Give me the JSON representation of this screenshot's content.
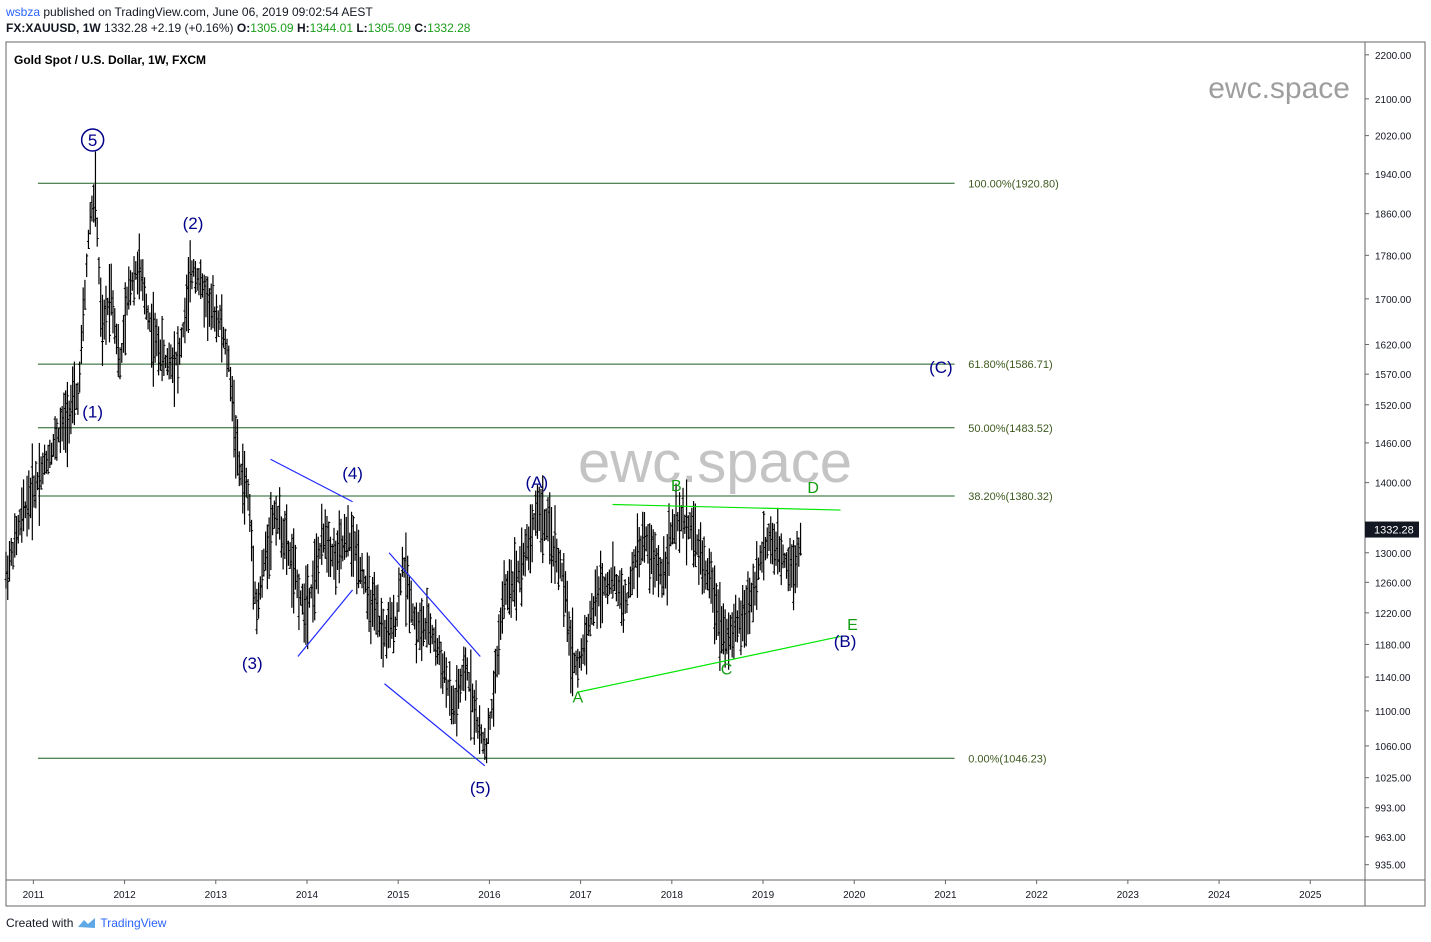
{
  "header": {
    "author": "wsbza",
    "published": "published on TradingView.com, June 06, 2019 09:02:54 AEST",
    "symbol": "FX:XAUUSD",
    "interval": "1W",
    "last": "1332.28",
    "change": "+2.19 (+0.16%)",
    "o_label": "O:",
    "o": "1305.09",
    "h_label": "H:",
    "h": "1344.01",
    "l_label": "L:",
    "l": "1305.09",
    "c_label": "C:",
    "c": "1332.28"
  },
  "footer": {
    "created_with": "Created with",
    "brand": "TradingView"
  },
  "colors": {
    "candles": "#000000",
    "fib": "#1b5e20",
    "wave_blue": "#00008b",
    "trend_blue": "#1f28ff",
    "triangle_green": "#00e600",
    "label_green": "#119e11",
    "price_badge": "#131722",
    "watermark": "#9e9e9e"
  },
  "chart_data": {
    "type": "candlestick",
    "title": "Gold Spot / U.S. Dollar, 1W, FXCM",
    "watermark_small": "ewc.space",
    "watermark_large": "ewc.space",
    "y_scale": "log",
    "ylim": [
      920,
      2230
    ],
    "xlim": [
      2010.7,
      2025.6
    ],
    "x_ticks": [
      "2011",
      "2012",
      "2013",
      "2014",
      "2015",
      "2016",
      "2017",
      "2018",
      "2019",
      "2020",
      "2021",
      "2022",
      "2023",
      "2024",
      "2025"
    ],
    "y_ticks": [
      2200,
      2100,
      2020,
      1940,
      1860,
      1780,
      1700,
      1620,
      1570,
      1520,
      1460,
      1400,
      1300,
      1260,
      1220,
      1180,
      1140,
      1100,
      1060,
      1025,
      993,
      963,
      935
    ],
    "current_price": "1332.28",
    "price_path": [
      [
        2010.7,
        1270
      ],
      [
        2010.9,
        1360
      ],
      [
        2011.1,
        1420
      ],
      [
        2011.3,
        1480
      ],
      [
        2011.5,
        1540
      ],
      [
        2011.62,
        1850
      ],
      [
        2011.68,
        1900
      ],
      [
        2011.75,
        1630
      ],
      [
        2011.85,
        1720
      ],
      [
        2011.95,
        1580
      ],
      [
        2012.05,
        1720
      ],
      [
        2012.15,
        1760
      ],
      [
        2012.3,
        1640
      ],
      [
        2012.45,
        1590
      ],
      [
        2012.6,
        1600
      ],
      [
        2012.75,
        1760
      ],
      [
        2012.85,
        1720
      ],
      [
        2012.95,
        1680
      ],
      [
        2013.05,
        1660
      ],
      [
        2013.15,
        1580
      ],
      [
        2013.25,
        1420
      ],
      [
        2013.35,
        1390
      ],
      [
        2013.45,
        1220
      ],
      [
        2013.55,
        1300
      ],
      [
        2013.65,
        1360
      ],
      [
        2013.8,
        1300
      ],
      [
        2013.95,
        1230
      ],
      [
        2014.05,
        1250
      ],
      [
        2014.2,
        1330
      ],
      [
        2014.3,
        1290
      ],
      [
        2014.45,
        1320
      ],
      [
        2014.55,
        1300
      ],
      [
        2014.7,
        1230
      ],
      [
        2014.85,
        1190
      ],
      [
        2014.98,
        1210
      ],
      [
        2015.05,
        1290
      ],
      [
        2015.2,
        1200
      ],
      [
        2015.35,
        1200
      ],
      [
        2015.5,
        1150
      ],
      [
        2015.6,
        1100
      ],
      [
        2015.75,
        1150
      ],
      [
        2015.9,
        1070
      ],
      [
        2015.97,
        1060
      ],
      [
        2016.05,
        1120
      ],
      [
        2016.15,
        1240
      ],
      [
        2016.3,
        1270
      ],
      [
        2016.45,
        1320
      ],
      [
        2016.52,
        1365
      ],
      [
        2016.65,
        1330
      ],
      [
        2016.8,
        1270
      ],
      [
        2016.9,
        1170
      ],
      [
        2016.97,
        1150
      ],
      [
        2017.1,
        1210
      ],
      [
        2017.2,
        1250
      ],
      [
        2017.35,
        1265
      ],
      [
        2017.5,
        1230
      ],
      [
        2017.6,
        1290
      ],
      [
        2017.7,
        1320
      ],
      [
        2017.8,
        1290
      ],
      [
        2017.9,
        1270
      ],
      [
        2018.0,
        1330
      ],
      [
        2018.1,
        1345
      ],
      [
        2018.2,
        1340
      ],
      [
        2018.3,
        1300
      ],
      [
        2018.45,
        1250
      ],
      [
        2018.55,
        1200
      ],
      [
        2018.65,
        1190
      ],
      [
        2018.75,
        1210
      ],
      [
        2018.85,
        1230
      ],
      [
        2018.95,
        1280
      ],
      [
        2019.05,
        1320
      ],
      [
        2019.15,
        1300
      ],
      [
        2019.25,
        1290
      ],
      [
        2019.35,
        1280
      ],
      [
        2019.43,
        1332
      ]
    ],
    "fib_levels": [
      {
        "label": "100.00%(1920.80)",
        "price": 1920.8
      },
      {
        "label": "61.80%(1586.71)",
        "price": 1586.71
      },
      {
        "label": "50.00%(1483.52)",
        "price": 1483.52
      },
      {
        "label": "38.20%(1380.32)",
        "price": 1380.32
      },
      {
        "label": "0.00%(1046.23)",
        "price": 1046.23
      }
    ],
    "wave_labels_blue": [
      {
        "text": "5",
        "circled": true,
        "x": 2011.65,
        "y": 1998
      },
      {
        "text": "(2)",
        "x": 2012.75,
        "y": 1830
      },
      {
        "text": "(1)",
        "x": 2011.65,
        "y": 1500
      },
      {
        "text": "(4)",
        "x": 2014.5,
        "y": 1405
      },
      {
        "text": "(3)",
        "x": 2013.4,
        "y": 1150
      },
      {
        "text": "(A)",
        "x": 2016.52,
        "y": 1392
      },
      {
        "text": "(5)",
        "x": 2015.9,
        "y": 1008
      },
      {
        "text": "(C)",
        "x": 2020.95,
        "y": 1572
      },
      {
        "text": "(B)",
        "x": 2019.9,
        "y": 1177
      }
    ],
    "wave_labels_green": [
      {
        "text": "B",
        "x": 2018.05,
        "y": 1388
      },
      {
        "text": "D",
        "x": 2019.55,
        "y": 1385
      },
      {
        "text": "E",
        "x": 2019.98,
        "y": 1198
      },
      {
        "text": "C",
        "x": 2018.6,
        "y": 1143
      },
      {
        "text": "A",
        "x": 2016.97,
        "y": 1110
      }
    ],
    "trendlines_blue": [
      [
        [
          2013.6,
          1435
        ],
        [
          2014.5,
          1372
        ]
      ],
      [
        [
          2013.9,
          1165
        ],
        [
          2014.5,
          1250
        ]
      ],
      [
        [
          2014.9,
          1300
        ],
        [
          2015.9,
          1165
        ]
      ],
      [
        [
          2014.85,
          1132
        ],
        [
          2015.95,
          1038
        ]
      ]
    ],
    "trendlines_green": [
      [
        [
          2017.35,
          1368
        ],
        [
          2019.85,
          1360
        ]
      ],
      [
        [
          2016.97,
          1122
        ],
        [
          2019.85,
          1190
        ]
      ]
    ]
  }
}
